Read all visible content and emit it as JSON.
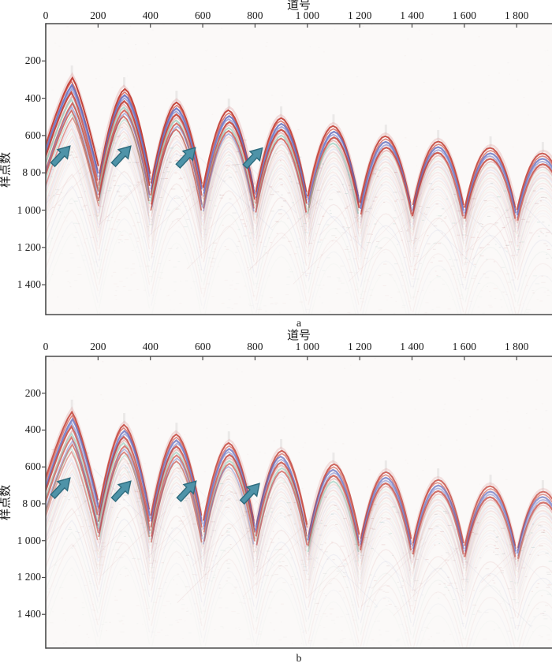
{
  "figure": {
    "background": "#ffffff",
    "panel_count": 2
  },
  "style": {
    "axis_color": "#4a4a4a",
    "text_color": "#1a1a1a",
    "plot_bg": "#fbf9f8",
    "arrow_fill": "#4e93a8",
    "arrow_stroke": "#2e6b7d",
    "band_palette": [
      "#e0a8a8",
      "#c0392f",
      "#cc4a42",
      "#5b66bb",
      "#7a82cc",
      "#d98c8c",
      "#8ec8b6",
      "#7b86c8"
    ],
    "noise_palette": [
      "#c06060",
      "#9a9a9a",
      "#70a8a0",
      "#b07878"
    ]
  },
  "chart_data": [
    {
      "type": "heatmap",
      "subtype": "seismic-shot-records",
      "sublabel": "a",
      "xlabel": "道号",
      "ylabel": "样点数",
      "xlim": [
        0,
        1935
      ],
      "ylim": [
        1560,
        0
      ],
      "x_ticks": {
        "values": [
          0,
          200,
          400,
          600,
          800,
          1000,
          1200,
          1400,
          1600,
          1800
        ],
        "labels": [
          "0",
          "200",
          "400",
          "600",
          "800",
          "1 000",
          "1 200",
          "1 400",
          "1 600",
          "1 800"
        ]
      },
      "y_ticks": {
        "values": [
          200,
          400,
          600,
          800,
          1000,
          1200,
          1400
        ],
        "labels": [
          "200",
          "400",
          "600",
          "8 00",
          "1 000",
          "1 200",
          "1 400"
        ]
      },
      "grid": false,
      "legend": false,
      "shots": [
        {
          "trace": 100,
          "apex_sample": 271
        },
        {
          "trace": 300,
          "apex_sample": 334
        },
        {
          "trace": 500,
          "apex_sample": 406
        },
        {
          "trace": 700,
          "apex_sample": 448
        },
        {
          "trace": 900,
          "apex_sample": 490
        },
        {
          "trace": 1100,
          "apex_sample": 533
        },
        {
          "trace": 1300,
          "apex_sample": 588
        },
        {
          "trace": 1500,
          "apex_sample": 617
        },
        {
          "trace": 1700,
          "apex_sample": 651
        },
        {
          "trace": 1900,
          "apex_sample": 681
        }
      ],
      "arrows": [
        {
          "trace": 60,
          "sample": 706
        },
        {
          "trace": 292,
          "sample": 706
        },
        {
          "trace": 539,
          "sample": 714
        },
        {
          "trace": 795,
          "sample": 716
        }
      ],
      "intensity": 1.0
    },
    {
      "type": "heatmap",
      "subtype": "seismic-shot-records",
      "sublabel": "b",
      "xlabel": "道号",
      "ylabel": "样点数",
      "xlim": [
        0,
        1935
      ],
      "ylim": [
        1583,
        0
      ],
      "x_ticks": {
        "values": [
          0,
          200,
          400,
          600,
          800,
          1000,
          1200,
          1400,
          1600,
          1800
        ],
        "labels": [
          "0",
          "200",
          "400",
          "600",
          "800",
          "1 000",
          "1 200",
          "1 400",
          "1 600",
          "1 800"
        ]
      },
      "y_ticks": {
        "values": [
          200,
          400,
          600,
          800,
          1000,
          1200,
          1400
        ],
        "labels": [
          "200",
          "400",
          "600",
          "8 00",
          "1 000",
          "1 200",
          "1 400"
        ]
      },
      "grid": false,
      "legend": false,
      "shots": [
        {
          "trace": 100,
          "apex_sample": 282
        },
        {
          "trace": 300,
          "apex_sample": 355
        },
        {
          "trace": 500,
          "apex_sample": 407
        },
        {
          "trace": 700,
          "apex_sample": 454
        },
        {
          "trace": 900,
          "apex_sample": 496
        },
        {
          "trace": 1100,
          "apex_sample": 569
        },
        {
          "trace": 1300,
          "apex_sample": 612
        },
        {
          "trace": 1500,
          "apex_sample": 655
        },
        {
          "trace": 1700,
          "apex_sample": 689
        },
        {
          "trace": 1900,
          "apex_sample": 719
        }
      ],
      "arrows": [
        {
          "trace": 60,
          "sample": 710
        },
        {
          "trace": 292,
          "sample": 727
        },
        {
          "trace": 542,
          "sample": 727
        },
        {
          "trace": 784,
          "sample": 740
        }
      ],
      "intensity": 0.88
    }
  ]
}
